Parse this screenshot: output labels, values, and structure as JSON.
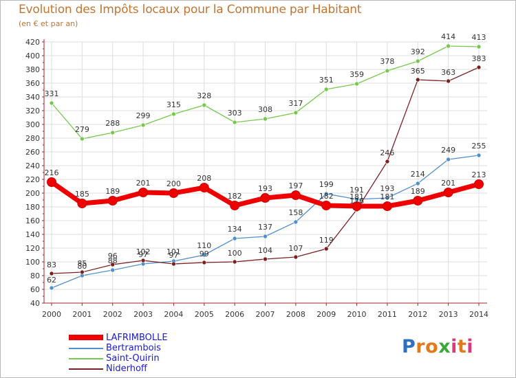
{
  "chart_data": {
    "type": "line",
    "title": "Evolution des Impôts locaux pour la Commune par Habitant",
    "subtitle": "(en € et par an)",
    "x": [
      "2000",
      "2001",
      "2002",
      "2003",
      "2004",
      "2005",
      "2006",
      "2007",
      "2008",
      "2009",
      "2010",
      "2011",
      "2012",
      "2013",
      "2014"
    ],
    "ylim": [
      40,
      420
    ],
    "yticks": [
      40,
      60,
      80,
      100,
      120,
      140,
      160,
      180,
      200,
      220,
      240,
      260,
      280,
      300,
      320,
      340,
      360,
      380,
      400,
      420
    ],
    "grid": true,
    "legend_position": "bottom-left",
    "series": [
      {
        "name": "LAFRIMBOLLE",
        "color": "#ee0000",
        "emphasis": true,
        "values": [
          216,
          185,
          189,
          201,
          200,
          208,
          182,
          193,
          197,
          182,
          181,
          181,
          189,
          201,
          213
        ]
      },
      {
        "name": "Bertrambois",
        "color": "#4f8fcc",
        "emphasis": false,
        "values": [
          62,
          80,
          88,
          97,
          101,
          110,
          134,
          137,
          158,
          199,
          191,
          193,
          214,
          249,
          255
        ]
      },
      {
        "name": "Saint-Quirin",
        "color": "#76c84c",
        "emphasis": false,
        "values": [
          331,
          279,
          288,
          299,
          315,
          328,
          303,
          308,
          317,
          351,
          359,
          378,
          392,
          414,
          413
        ]
      },
      {
        "name": "Niderhoff",
        "color": "#7a2020",
        "emphasis": false,
        "values": [
          83,
          85,
          96,
          102,
          97,
          99,
          100,
          104,
          107,
          119,
          176,
          246,
          365,
          363,
          383
        ]
      }
    ],
    "data_labels": {
      "LAFRIMBOLLE": [
        "216",
        "185",
        "189",
        "201",
        "200",
        "208",
        "182",
        "193",
        "197",
        "182",
        "181",
        "181",
        "189",
        "201",
        "213"
      ],
      "Bertrambois": [
        "62",
        "80",
        "88",
        "97",
        "101",
        "110",
        "134",
        "137",
        "158",
        "199",
        "191",
        "193",
        "214",
        "249",
        "255"
      ],
      "Saint-Quirin": [
        "331",
        "279",
        "288",
        "299",
        "315",
        "328",
        "303",
        "308",
        "317",
        "351",
        "359",
        "378",
        "392",
        "414",
        "413"
      ],
      "Niderhoff": [
        "83",
        "85",
        "96",
        "102",
        "97",
        "99",
        "100",
        "104",
        "107",
        "119",
        "176",
        "246",
        "365",
        "363",
        "383"
      ]
    }
  },
  "legend": {
    "items": [
      {
        "label": "LAFRIMBOLLE",
        "color": "#ee0000"
      },
      {
        "label": "Bertrambois",
        "color": "#4f8fcc"
      },
      {
        "label": "Saint-Quirin",
        "color": "#76c84c"
      },
      {
        "label": "Niderhoff",
        "color": "#7a2020"
      }
    ]
  },
  "brand": {
    "text": "Proxiti",
    "letters": [
      "P",
      "r",
      "o",
      "x",
      "i",
      "t",
      "i"
    ],
    "colors": [
      "#2f6fc0",
      "#e07a1a",
      "#e07a1a",
      "#3ca83c",
      "#d93a7a",
      "#e07a1a",
      "#d93a7a"
    ]
  },
  "colors": {
    "title": "#c27431",
    "grid": "#dddddd",
    "axis": "#aa2222"
  }
}
